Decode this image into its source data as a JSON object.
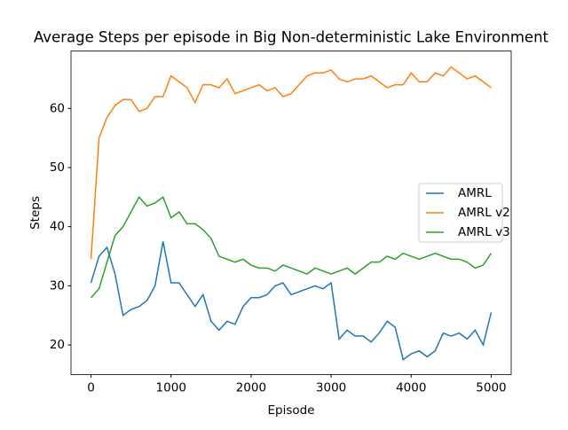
{
  "chart_data": {
    "type": "line",
    "title": "Average Steps per episode in Big Non-deterministic Lake Environment",
    "x_label": "Episode",
    "y_label": "Steps",
    "x": [
      0,
      100,
      200,
      300,
      400,
      500,
      600,
      700,
      800,
      900,
      1000,
      1100,
      1200,
      1300,
      1400,
      1500,
      1600,
      1700,
      1800,
      1900,
      2000,
      2100,
      2200,
      2300,
      2400,
      2500,
      2600,
      2700,
      2800,
      2900,
      3000,
      3100,
      3200,
      3300,
      3400,
      3500,
      3600,
      3700,
      3800,
      3900,
      4000,
      4100,
      4200,
      4300,
      4400,
      4500,
      4600,
      4700,
      4800,
      4900,
      5000
    ],
    "series": [
      {
        "name": "AMRL",
        "color": "#1f77b4",
        "values": [
          30.5,
          35,
          36.5,
          32,
          25,
          26,
          26.5,
          27.5,
          30,
          37.5,
          30.5,
          30.5,
          28.5,
          26.5,
          28.5,
          24,
          22.5,
          24,
          23.5,
          26.5,
          28,
          28,
          28.5,
          30,
          30.5,
          28.5,
          29,
          29.5,
          30,
          29.5,
          30.5,
          21,
          22.5,
          21.5,
          21.5,
          20.5,
          22,
          24,
          23,
          17.5,
          18.5,
          19,
          18,
          19,
          22,
          21.5,
          22,
          21,
          22.5,
          20,
          25.5
        ]
      },
      {
        "name": "AMRL v2",
        "color": "#ff7f0e",
        "values": [
          34.5,
          55,
          58.5,
          60.5,
          61.5,
          61.5,
          59.5,
          60,
          62,
          62,
          65.5,
          64.5,
          63.5,
          61,
          64,
          64,
          63.5,
          65,
          62.5,
          63,
          63.5,
          64,
          63,
          63.5,
          62,
          62.5,
          64,
          65.5,
          66,
          66,
          66.5,
          65,
          64.5,
          65,
          65,
          65.5,
          64.5,
          63.5,
          64,
          64,
          66,
          64.5,
          64.5,
          66,
          65.5,
          67,
          66,
          65,
          65.5,
          64.5,
          63.5
        ]
      },
      {
        "name": "AMRL v3",
        "color": "#2ca02c",
        "values": [
          28,
          29.5,
          34,
          38.5,
          40,
          42.5,
          45,
          43.5,
          44,
          45,
          41.5,
          42.5,
          40.5,
          40.5,
          39.5,
          38,
          35,
          34.5,
          34,
          34.5,
          33.5,
          33,
          33,
          32.5,
          33.5,
          33,
          32.5,
          32,
          33,
          32.5,
          32,
          32.5,
          33,
          32,
          33,
          34,
          34,
          35,
          34.5,
          35.5,
          35,
          34.5,
          35,
          35.5,
          35,
          34.5,
          34.5,
          34,
          33,
          33.5,
          35.5
        ]
      }
    ],
    "xlim": [
      -250,
      5250
    ],
    "ylim": [
      15,
      69.7
    ],
    "xticks": [
      0,
      1000,
      2000,
      3000,
      4000,
      5000
    ],
    "yticks": [
      20,
      30,
      40,
      50,
      60
    ],
    "legend": "center right"
  }
}
